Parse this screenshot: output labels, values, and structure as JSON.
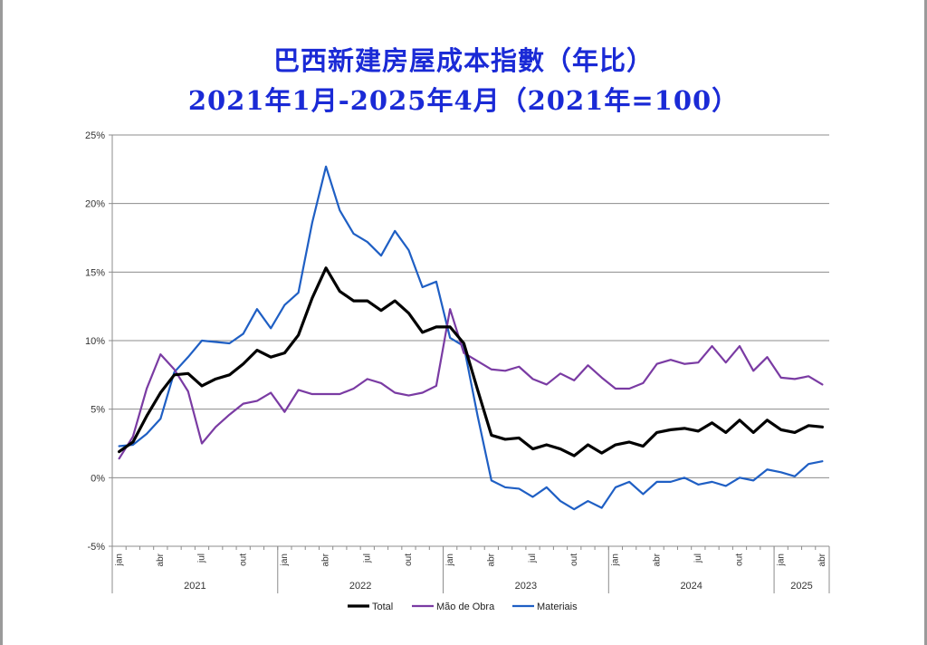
{
  "chart_data": {
    "type": "line",
    "title": "巴西新建房屋成本指數（年比）",
    "subtitle": "2021年1月-2025年4月（2021年=100）",
    "xlabel": "",
    "ylabel": "",
    "y_ticks": [
      "25%",
      "20%",
      "15%",
      "10%",
      "5%",
      "0%",
      "-5%"
    ],
    "ylim": [
      -5,
      25
    ],
    "grid": true,
    "legend_position": "bottom",
    "month_ticks": [
      "jan",
      "abr",
      "jul",
      "out",
      "jan",
      "abr",
      "jul",
      "out",
      "jan",
      "abr",
      "jul",
      "out",
      "jan",
      "abr",
      "jul",
      "out",
      "jan",
      "abr"
    ],
    "years": [
      "2021",
      "2022",
      "2023",
      "2024",
      "2025"
    ],
    "series": [
      {
        "name": "Total",
        "color": "#000000",
        "values": [
          1.9,
          2.6,
          4.5,
          6.2,
          7.5,
          7.6,
          6.7,
          7.2,
          7.5,
          8.3,
          9.3,
          8.8,
          9.1,
          10.4,
          13.1,
          15.3,
          13.6,
          12.9,
          12.9,
          12.2,
          12.9,
          12.0,
          10.6,
          11.0,
          11.0,
          9.8,
          6.4,
          3.1,
          2.8,
          2.9,
          2.1,
          2.4,
          2.1,
          1.6,
          2.4,
          1.8,
          2.4,
          2.6,
          2.3,
          3.3,
          3.5,
          3.6,
          3.4,
          4.0,
          3.3,
          4.2,
          3.3,
          4.2,
          3.5,
          3.3,
          3.8,
          3.7
        ]
      },
      {
        "name": "Mão de Obra",
        "color": "#7a3ba3",
        "values": [
          1.4,
          3.0,
          6.5,
          9.0,
          7.9,
          6.3,
          2.5,
          3.7,
          4.6,
          5.4,
          5.6,
          6.2,
          4.8,
          6.4,
          6.1,
          6.1,
          6.1,
          6.5,
          7.2,
          6.9,
          6.2,
          6.0,
          6.2,
          6.7,
          12.3,
          9.1,
          8.5,
          7.9,
          7.8,
          8.1,
          7.2,
          6.8,
          7.6,
          7.1,
          8.2,
          7.3,
          6.5,
          6.5,
          6.9,
          8.3,
          8.6,
          8.3,
          8.4,
          9.6,
          8.4,
          9.6,
          7.8,
          8.8,
          7.3,
          7.2,
          7.4,
          6.8
        ]
      },
      {
        "name": "Materiais",
        "color": "#1f5fc4",
        "values": [
          2.3,
          2.4,
          3.2,
          4.3,
          7.7,
          8.8,
          10.0,
          9.9,
          9.8,
          10.5,
          12.3,
          10.9,
          12.6,
          13.5,
          18.6,
          22.7,
          19.5,
          17.8,
          17.2,
          16.2,
          18.0,
          16.6,
          13.9,
          14.3,
          10.2,
          9.6,
          4.5,
          -0.2,
          -0.7,
          -0.8,
          -1.4,
          -0.7,
          -1.7,
          -2.3,
          -1.7,
          -2.2,
          -0.7,
          -0.3,
          -1.2,
          -0.3,
          -0.3,
          0.0,
          -0.5,
          -0.3,
          -0.6,
          0.0,
          -0.2,
          0.6,
          0.4,
          0.1,
          1.0,
          1.2
        ]
      }
    ]
  }
}
